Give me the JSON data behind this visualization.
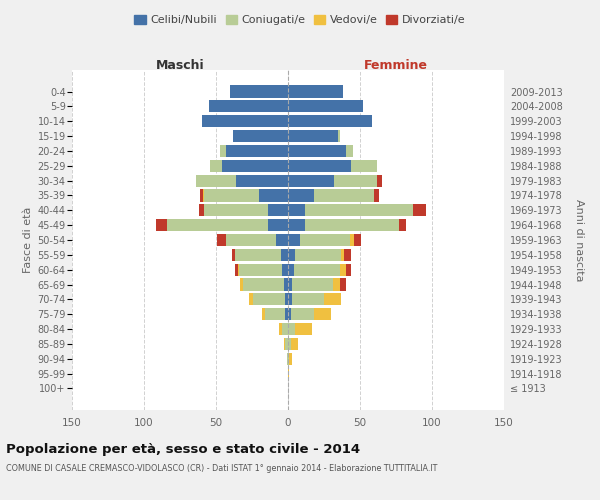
{
  "age_groups": [
    "100+",
    "95-99",
    "90-94",
    "85-89",
    "80-84",
    "75-79",
    "70-74",
    "65-69",
    "60-64",
    "55-59",
    "50-54",
    "45-49",
    "40-44",
    "35-39",
    "30-34",
    "25-29",
    "20-24",
    "15-19",
    "10-14",
    "5-9",
    "0-4"
  ],
  "birth_years": [
    "≤ 1913",
    "1914-1918",
    "1919-1923",
    "1924-1928",
    "1929-1933",
    "1934-1938",
    "1939-1943",
    "1944-1948",
    "1949-1953",
    "1954-1958",
    "1959-1963",
    "1964-1968",
    "1969-1973",
    "1974-1978",
    "1979-1983",
    "1984-1988",
    "1989-1993",
    "1994-1998",
    "1999-2003",
    "2004-2008",
    "2009-2013"
  ],
  "males": {
    "celibe": [
      0,
      0,
      0,
      0,
      0,
      2,
      2,
      3,
      4,
      5,
      8,
      14,
      14,
      20,
      36,
      46,
      43,
      38,
      60,
      55,
      40
    ],
    "coniugato": [
      0,
      0,
      1,
      2,
      4,
      14,
      22,
      28,
      30,
      32,
      35,
      70,
      44,
      38,
      28,
      8,
      4,
      0,
      0,
      0,
      0
    ],
    "vedovo": [
      0,
      0,
      0,
      1,
      2,
      2,
      3,
      2,
      1,
      0,
      0,
      0,
      0,
      1,
      0,
      0,
      0,
      0,
      0,
      0,
      0
    ],
    "divorziato": [
      0,
      0,
      0,
      0,
      0,
      0,
      0,
      0,
      2,
      2,
      6,
      8,
      4,
      2,
      0,
      0,
      0,
      0,
      0,
      0,
      0
    ]
  },
  "females": {
    "nubile": [
      0,
      0,
      0,
      0,
      0,
      2,
      3,
      3,
      4,
      5,
      8,
      12,
      12,
      18,
      32,
      44,
      40,
      35,
      58,
      52,
      38
    ],
    "coniugata": [
      0,
      0,
      1,
      2,
      5,
      16,
      22,
      28,
      32,
      32,
      35,
      65,
      75,
      42,
      30,
      18,
      5,
      1,
      0,
      0,
      0
    ],
    "vedova": [
      0,
      1,
      2,
      5,
      12,
      12,
      12,
      5,
      4,
      2,
      3,
      0,
      0,
      0,
      0,
      0,
      0,
      0,
      0,
      0,
      0
    ],
    "divorziata": [
      0,
      0,
      0,
      0,
      0,
      0,
      0,
      4,
      4,
      5,
      5,
      5,
      9,
      3,
      3,
      0,
      0,
      0,
      0,
      0,
      0
    ]
  },
  "colors": {
    "celibe": "#4472a8",
    "coniugato": "#b8cc96",
    "vedovo": "#f0c040",
    "divorziato": "#c0392b"
  },
  "xlim": 150,
  "title": "Popolazione per età, sesso e stato civile - 2014",
  "subtitle": "COMUNE DI CASALE CREMASCO-VIDOLASCO (CR) - Dati ISTAT 1° gennaio 2014 - Elaborazione TUTTITALIA.IT",
  "ylabel": "Fasce di età",
  "ylabel_right": "Anni di nascita",
  "xlabel_maschi": "Maschi",
  "xlabel_femmine": "Femmine",
  "bg_color": "#f0f0f0",
  "plot_bg": "#ffffff",
  "grid_color": "#cccccc"
}
